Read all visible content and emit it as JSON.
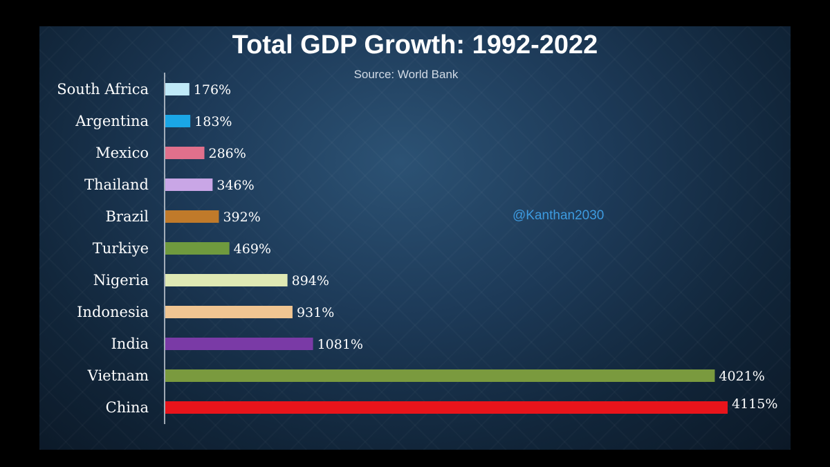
{
  "chart_data": {
    "type": "bar",
    "orientation": "horizontal",
    "title": "Total GDP Growth: 1992-2022",
    "subtitle": "Source: World Bank",
    "annotation": "@Kanthan2030",
    "categories": [
      "South Africa",
      "Argentina",
      "Mexico",
      "Thailand",
      "Brazil",
      "Turkiye",
      "Nigeria",
      "Indonesia",
      "India",
      "Vietnam",
      "China"
    ],
    "values": [
      176,
      183,
      286,
      346,
      392,
      469,
      894,
      931,
      1081,
      4021,
      4115
    ],
    "value_labels": [
      "176%",
      "183%",
      "286%",
      "346%",
      "392%",
      "469%",
      "894%",
      "931%",
      "1081%",
      "4021%",
      "4115%"
    ],
    "bar_colors": [
      "#bfe9f8",
      "#1aa6e6",
      "#e0708c",
      "#c9a6e6",
      "#c07a2a",
      "#6f9a3e",
      "#dfe9b4",
      "#f0c592",
      "#7a3aa6",
      "#7a9a3e",
      "#e8141b"
    ],
    "xlim": [
      0,
      4115
    ],
    "grid": false,
    "legend": "none"
  }
}
